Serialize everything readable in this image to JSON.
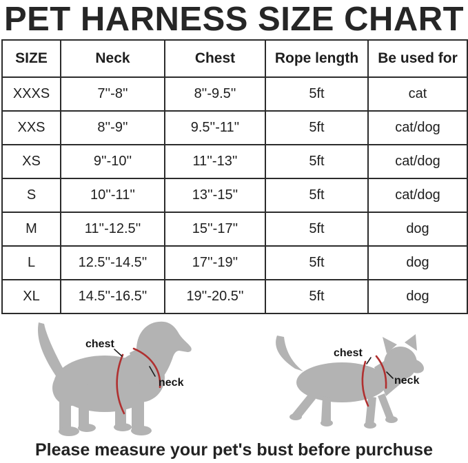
{
  "chart_data": {
    "type": "table",
    "title": "PET HARNESS SIZE CHART",
    "columns": [
      "SIZE",
      "Neck",
      "Chest",
      "Rope length",
      "Be used for"
    ],
    "rows": [
      [
        "XXXS",
        "7''-8''",
        "8''-9.5''",
        "5ft",
        "cat"
      ],
      [
        "XXS",
        "8''-9''",
        "9.5''-11''",
        "5ft",
        "cat/dog"
      ],
      [
        "XS",
        "9''-10''",
        "11''-13''",
        "5ft",
        "cat/dog"
      ],
      [
        "S",
        "10''-11''",
        "13''-15''",
        "5ft",
        "cat/dog"
      ],
      [
        "M",
        "11''-12.5''",
        "15''-17''",
        "5ft",
        "dog"
      ],
      [
        "L",
        "12.5''-14.5''",
        "17''-19''",
        "5ft",
        "dog"
      ],
      [
        "XL",
        "14.5''-16.5''",
        "19''-20.5''",
        "5ft",
        "dog"
      ]
    ],
    "note": "Please measure your pet's bust before purchuse"
  },
  "diagram": {
    "dog": {
      "chest_label": "chest",
      "neck_label": "neck"
    },
    "cat": {
      "chest_label": "chest",
      "neck_label": "neck"
    }
  },
  "colors": {
    "silhouette_gray": "#b3b3b3",
    "harness_red": "#b03030",
    "text_dark": "#222222"
  }
}
